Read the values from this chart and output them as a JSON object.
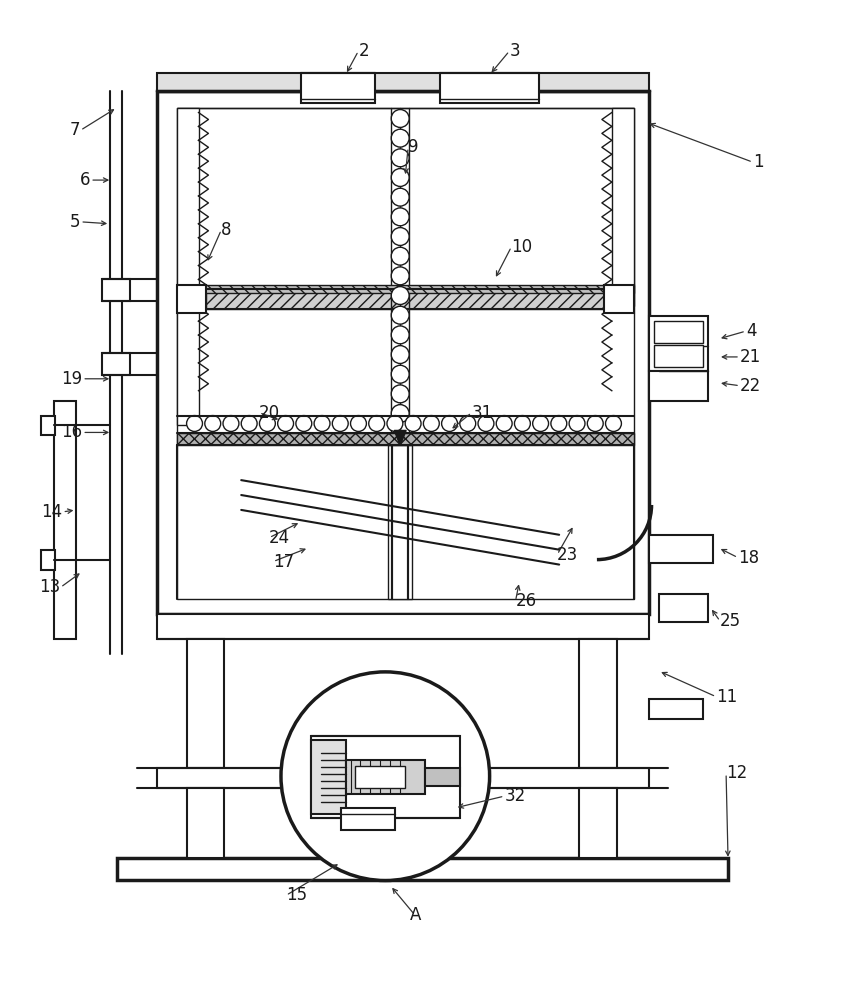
{
  "bg_color": "#ffffff",
  "line_color": "#1a1a1a",
  "label_color": "#1a1a1a",
  "figsize": [
    8.6,
    10.0
  ],
  "dpi": 100
}
